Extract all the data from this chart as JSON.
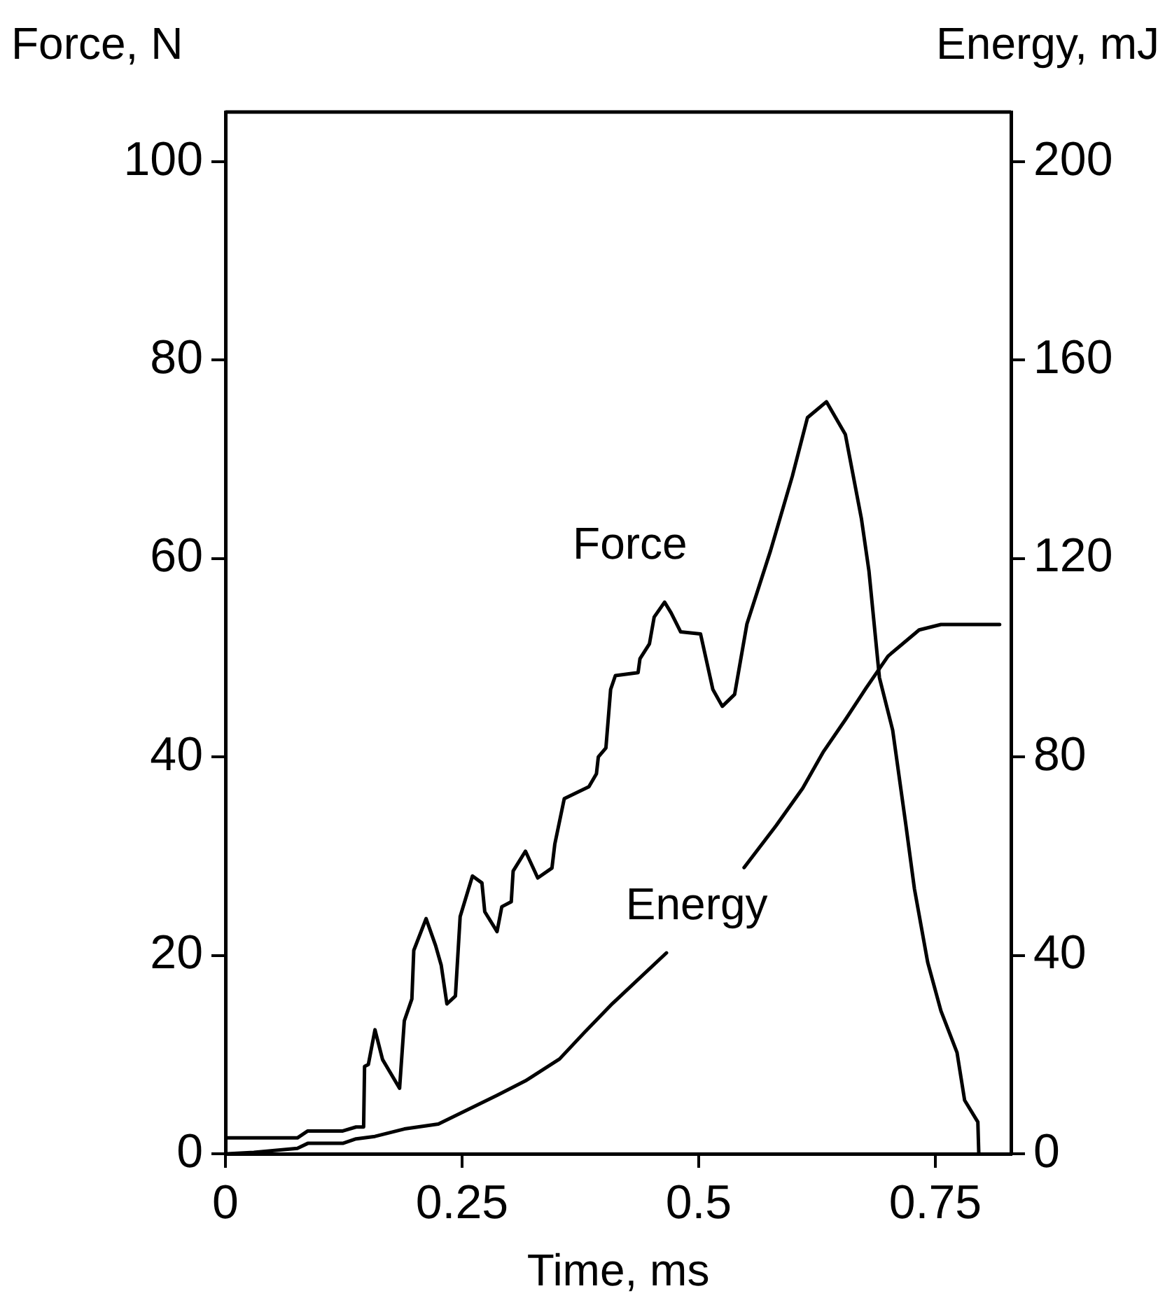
{
  "chart_data": {
    "type": "line",
    "xlabel": "Time, ms",
    "ylabel": "Force, N",
    "y2label": "Energy, mJ",
    "xlim": [
      0,
      0.83
    ],
    "xticks": [
      0,
      0.25,
      0.5,
      0.75
    ],
    "ylim": [
      0,
      105
    ],
    "yticks": [
      0,
      20,
      40,
      60,
      80,
      100
    ],
    "y2lim": [
      0,
      210
    ],
    "y2ticks": [
      0,
      40,
      80,
      120,
      160,
      200
    ],
    "grid": false,
    "legend": false,
    "marker": "none",
    "line_style": "solid",
    "series": [
      {
        "name": "Force",
        "color": "#000000",
        "x": [
          0.002,
          0.076,
          0.087,
          0.124,
          0.138,
          0.146,
          0.147,
          0.151,
          0.158,
          0.166,
          0.184,
          0.189,
          0.197,
          0.199,
          0.212,
          0.222,
          0.228,
          0.234,
          0.243,
          0.248,
          0.261,
          0.271,
          0.274,
          0.287,
          0.292,
          0.302,
          0.304,
          0.317,
          0.33,
          0.345,
          0.348,
          0.358,
          0.384,
          0.392,
          0.394,
          0.402,
          0.407,
          0.412,
          0.436,
          0.438,
          0.448,
          0.453,
          0.464,
          0.471,
          0.481,
          0.502,
          0.515,
          0.525,
          0.538,
          0.551,
          0.576,
          0.599,
          0.615,
          0.635,
          0.655,
          0.672,
          0.68,
          0.691,
          0.705,
          0.719,
          0.728,
          0.742,
          0.756,
          0.773,
          0.781,
          0.795,
          0.796
        ],
        "values": [
          1.6,
          1.6,
          2.3,
          2.3,
          2.7,
          2.7,
          8.8,
          9,
          12.5,
          9.5,
          6.6,
          13.4,
          15.6,
          20.5,
          23.7,
          21,
          19,
          15.1,
          15.9,
          23.9,
          28,
          27.3,
          24.4,
          22.4,
          24.9,
          25.4,
          28.5,
          30.5,
          27.8,
          28.8,
          31.2,
          35.8,
          37,
          38.3,
          40,
          40.9,
          46.8,
          48.2,
          48.5,
          49.9,
          51.4,
          54.1,
          55.6,
          54.5,
          52.6,
          52.4,
          46.8,
          45.1,
          46.3,
          53.4,
          60.8,
          68.3,
          74.2,
          75.8,
          72.5,
          64,
          58.7,
          48,
          42.7,
          33.1,
          26.7,
          19.3,
          14.4,
          10.2,
          5.4,
          3.2,
          0
        ]
      },
      {
        "name": "Energy",
        "color": "#000000",
        "axis": "y2",
        "x": [
          0.002,
          0.03,
          0.076,
          0.087,
          0.124,
          0.138,
          0.158,
          0.189,
          0.225,
          0.256,
          0.287,
          0.317,
          0.353,
          0.379,
          0.409,
          0.466,
          0.5,
          0.548,
          0.582,
          0.61,
          0.632,
          0.655,
          0.677,
          0.7,
          0.733,
          0.756,
          0.818
        ],
        "values": [
          0,
          0.3,
          1.1,
          2.1,
          2.1,
          3,
          3.5,
          5,
          6,
          8.9,
          11.8,
          14.7,
          19.1,
          24.4,
          30.3,
          40.5,
          null,
          57.7,
          66.2,
          73.7,
          81.1,
          87.5,
          93.9,
          100.3,
          105.6,
          106.7,
          106.7
        ]
      }
    ]
  }
}
